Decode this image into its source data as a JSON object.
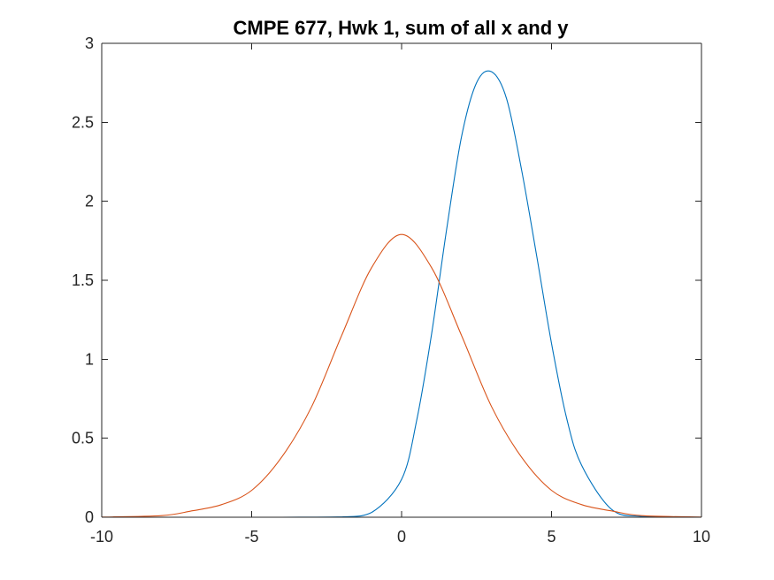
{
  "chart_data": {
    "type": "line",
    "title": "CMPE 677, Hwk 1, sum of all x and y",
    "xlabel": "",
    "ylabel": "",
    "xlim": [
      -10,
      10
    ],
    "ylim": [
      0,
      3
    ],
    "xticks": [
      -10,
      -5,
      0,
      5,
      10
    ],
    "xtick_labels": [
      "-10",
      "-5",
      "0",
      "5",
      "10"
    ],
    "yticks": [
      0,
      0.5,
      1,
      1.5,
      2,
      2.5,
      3
    ],
    "ytick_labels": [
      "0",
      "0.5",
      "1",
      "1.5",
      "2",
      "2.5",
      "3"
    ],
    "grid": false,
    "legend": "none",
    "series": [
      {
        "color": "#0072BD",
        "x": [
          -10,
          -4,
          -2,
          -1,
          0,
          0.5,
          1,
          1.5,
          2,
          2.5,
          3,
          3.5,
          4,
          4.5,
          5,
          5.5,
          6,
          7,
          8,
          10
        ],
        "y": [
          0,
          0,
          0.002,
          0.03,
          0.24,
          0.61,
          1.16,
          1.82,
          2.41,
          2.75,
          2.82,
          2.65,
          2.2,
          1.66,
          1.1,
          0.63,
          0.33,
          0.05,
          0.005,
          0
        ]
      },
      {
        "color": "#D95319",
        "x": [
          -10,
          -8,
          -7,
          -6,
          -5,
          -4,
          -3,
          -2,
          -1,
          0,
          1,
          2,
          3,
          4,
          5,
          6,
          7,
          8,
          10
        ],
        "y": [
          0.001,
          0.01,
          0.04,
          0.08,
          0.17,
          0.38,
          0.7,
          1.15,
          1.58,
          1.79,
          1.58,
          1.15,
          0.7,
          0.38,
          0.17,
          0.08,
          0.04,
          0.01,
          0.001
        ]
      }
    ]
  }
}
